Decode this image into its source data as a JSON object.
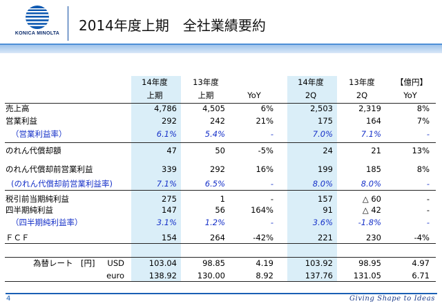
{
  "logo": {
    "brand": "KONICA MINOLTA"
  },
  "title": "2014年度上期　全社業績要約",
  "unit_label": "【億円】",
  "headers": [
    [
      "",
      ""
    ],
    [
      "14年度",
      "上期"
    ],
    [
      "13年度",
      "上期"
    ],
    [
      "",
      "YoY"
    ],
    [
      "14年度",
      "2Q"
    ],
    [
      "13年度",
      "2Q"
    ],
    [
      "",
      "YoY"
    ]
  ],
  "rows": [
    {
      "label": "売上高",
      "values": [
        "4,786",
        "4,505",
        "6%",
        "2,503",
        "2,319",
        "8%"
      ],
      "style": "normal"
    },
    {
      "label": "営業利益",
      "values": [
        "292",
        "242",
        "21%",
        "175",
        "164",
        "7%"
      ],
      "style": "normal"
    },
    {
      "label": "（営業利益率）",
      "values": [
        "6.1%",
        "5.4%",
        "-",
        "7.0%",
        "7.1%",
        "-"
      ],
      "style": "ratio"
    },
    {
      "label": "のれん代償却額",
      "values": [
        "47",
        "50",
        "-5%",
        "24",
        "21",
        "13%"
      ],
      "style": "normal"
    },
    {
      "label": "のれん代償却前営業利益",
      "values": [
        "339",
        "292",
        "16%",
        "199",
        "185",
        "8%"
      ],
      "style": "normal"
    },
    {
      "label": "(のれん代償却前営業利益率)",
      "values": [
        "7.1%",
        "6.5%",
        "-",
        "8.0%",
        "8.0%",
        "-"
      ],
      "style": "ratio"
    },
    {
      "label": "税引前当期純利益",
      "values": [
        "275",
        "1",
        "-",
        "157",
        "△ 60",
        "-"
      ],
      "style": "normal"
    },
    {
      "label": "四半期純利益",
      "values": [
        "147",
        "56",
        "164%",
        "91",
        "△ 42",
        "-"
      ],
      "style": "normal"
    },
    {
      "label": "（四半期純利益率）",
      "values": [
        "3.1%",
        "1.2%",
        "-",
        "3.6%",
        "-1.8%",
        "-"
      ],
      "style": "ratio"
    },
    {
      "label": "ＦＣＦ",
      "values": [
        "154",
        "264",
        "-42%",
        "221",
        "230",
        "-4%"
      ],
      "style": "normal"
    }
  ],
  "fx": {
    "label": "為替レート　[円]",
    "rows": [
      {
        "currency": "USD",
        "values": [
          "103.04",
          "98.85",
          "4.19",
          "103.92",
          "98.95",
          "4.97"
        ]
      },
      {
        "currency": "euro",
        "values": [
          "138.92",
          "130.00",
          "8.92",
          "137.76",
          "131.05",
          "6.71"
        ]
      }
    ]
  },
  "footer": {
    "page": "4",
    "slogan": "Giving Shape to Ideas"
  },
  "colors": {
    "highlight": "#daeef8",
    "ratio_text": "#1530c8",
    "accent": "#1a5fb4"
  }
}
